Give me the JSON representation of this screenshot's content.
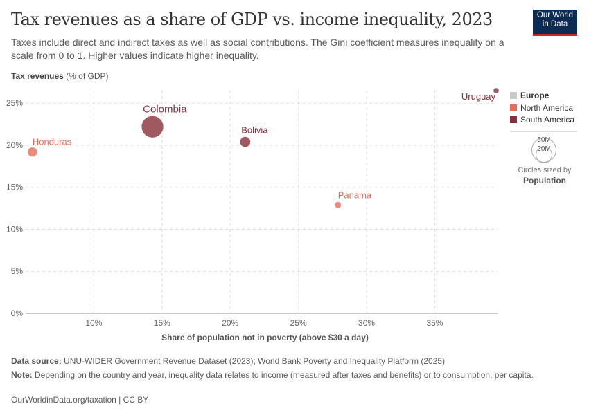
{
  "title": "Tax revenues as a share of GDP vs. income inequality, 2023",
  "subtitle": "Taxes include direct and indirect taxes as well as social contributions. The Gini coefficient measures inequality on a scale from 0 to 1. Higher values indicate higher inequality.",
  "logo": {
    "line1": "Our World",
    "line2": "in Data"
  },
  "legend": {
    "items": [
      {
        "label": "Europe",
        "color": "#c8c8c8"
      },
      {
        "label": "North America",
        "color": "#e56e5a"
      },
      {
        "label": "South America",
        "color": "#883039"
      }
    ],
    "size_big": "50M",
    "size_small": "20M",
    "size_caption": "Circles sized by",
    "size_variable": "Population"
  },
  "footer": {
    "source_label": "Data source:",
    "source": "UNU-WIDER Government Revenue Dataset (2023); World Bank Poverty and Inequality Platform (2025)",
    "note_label": "Note:",
    "note": "Depending on the country and year, inequality data relates to income (measured after taxes and benefits) or to consumption, per capita.",
    "url": "OurWorldinData.org/taxation | CC BY"
  },
  "chart_data": {
    "type": "scatter",
    "title": "Tax revenues as a share of GDP vs. income inequality, 2023",
    "ylabel_bold": "Tax revenues",
    "ylabel_unit": "(% of GDP)",
    "xlabel": "Share of population not in poverty (above $30 a day)",
    "xlim": [
      5,
      39.6
    ],
    "ylim": [
      0,
      26.5
    ],
    "xticks": [
      10,
      15,
      20,
      25,
      30,
      35
    ],
    "xtick_labels": [
      "10%",
      "15%",
      "20%",
      "25%",
      "30%",
      "35%"
    ],
    "yticks": [
      0,
      5,
      10,
      15,
      20,
      25
    ],
    "ytick_labels": [
      "0%",
      "5%",
      "10%",
      "15%",
      "20%",
      "25%"
    ],
    "grid": true,
    "legend_position": "right",
    "points": [
      {
        "name": "Honduras",
        "x": 5.5,
        "y": 19.2,
        "population_millions": 10,
        "region": "North America"
      },
      {
        "name": "Colombia",
        "x": 14.3,
        "y": 22.2,
        "population_millions": 52,
        "region": "South America"
      },
      {
        "name": "Bolivia",
        "x": 21.1,
        "y": 20.4,
        "population_millions": 12,
        "region": "South America"
      },
      {
        "name": "Panama",
        "x": 27.9,
        "y": 12.9,
        "population_millions": 4.5,
        "region": "North America"
      },
      {
        "name": "Uruguay",
        "x": 39.5,
        "y": 26.5,
        "population_millions": 3.4,
        "region": "South America"
      }
    ]
  }
}
